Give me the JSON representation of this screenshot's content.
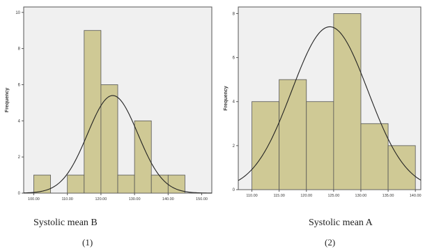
{
  "chart_data": [
    {
      "type": "bar",
      "subtype": "histogram_with_normal_curve",
      "ylabel": "Frequency",
      "xlabel": "Systolic mean B",
      "panel_number": "(1)",
      "xlim": [
        97,
        153
      ],
      "ylim": [
        0,
        10.3
      ],
      "xticks": [
        "100.00",
        "110.00",
        "120.00",
        "130.00",
        "140.00",
        "150.00"
      ],
      "yticks": [
        "0",
        "2",
        "4",
        "6",
        "8",
        "10"
      ],
      "bins": [
        {
          "x0": 100,
          "x1": 105,
          "count": 1
        },
        {
          "x0": 110,
          "x1": 115,
          "count": 1
        },
        {
          "x0": 115,
          "x1": 120,
          "count": 9
        },
        {
          "x0": 120,
          "x1": 125,
          "count": 6
        },
        {
          "x0": 125,
          "x1": 130,
          "count": 1
        },
        {
          "x0": 130,
          "x1": 135,
          "count": 4
        },
        {
          "x0": 135,
          "x1": 140,
          "count": 1
        },
        {
          "x0": 140,
          "x1": 145,
          "count": 1
        }
      ],
      "normal_curve": {
        "mean": 123.5,
        "sd": 7.5,
        "peak": 5.4
      },
      "colors": {
        "bar": "#cfc995",
        "edge": "#555555",
        "plot_bg": "#f0f0f0",
        "curve": "#222222"
      }
    },
    {
      "type": "bar",
      "subtype": "histogram_with_normal_curve",
      "ylabel": "Frequency",
      "xlabel": "Systolic mean A",
      "panel_number": "(2)",
      "xlim": [
        107.5,
        141
      ],
      "ylim": [
        0,
        8.3
      ],
      "xticks": [
        "110.00",
        "115.00",
        "120.00",
        "125.00",
        "130.00",
        "135.00",
        "140.00"
      ],
      "yticks": [
        "0",
        "2",
        "4",
        "6",
        "8"
      ],
      "bins": [
        {
          "x0": 110,
          "x1": 115,
          "count": 4
        },
        {
          "x0": 115,
          "x1": 120,
          "count": 5
        },
        {
          "x0": 120,
          "x1": 125,
          "count": 4
        },
        {
          "x0": 125,
          "x1": 130,
          "count": 8
        },
        {
          "x0": 130,
          "x1": 135,
          "count": 3
        },
        {
          "x0": 135,
          "x1": 140,
          "count": 2
        }
      ],
      "normal_curve": {
        "mean": 124.3,
        "sd": 7.0,
        "peak": 7.4
      },
      "colors": {
        "bar": "#cfc995",
        "edge": "#555555",
        "plot_bg": "#f0f0f0",
        "curve": "#222222"
      }
    }
  ]
}
